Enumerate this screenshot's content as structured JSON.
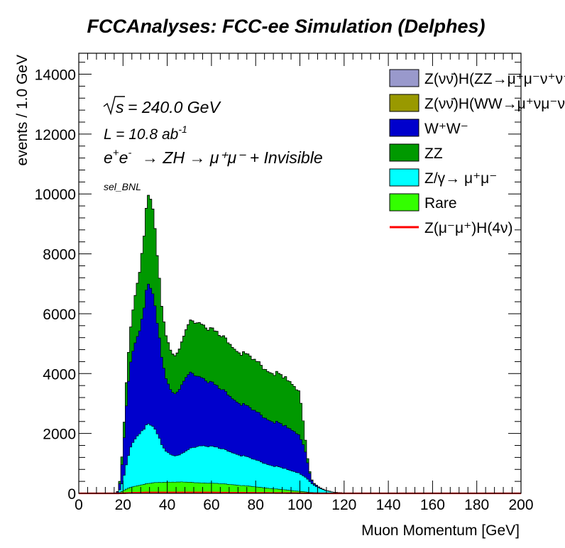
{
  "chart_data": {
    "type": "area",
    "title": "FCCAnalyses: FCC-ee Simulation (Delphes)",
    "xlabel": "Muon Momentum [GeV]",
    "ylabel": "events / 1.0 GeV",
    "xlim": [
      0,
      200
    ],
    "ylim": [
      0,
      14700
    ],
    "x_ticks": [
      "0",
      "20",
      "40",
      "60",
      "80",
      "100",
      "120",
      "140",
      "160",
      "180",
      "200"
    ],
    "y_ticks": [
      "0",
      "2000",
      "4000",
      "6000",
      "8000",
      "10000",
      "12000",
      "14000"
    ],
    "annotations": {
      "sqrt_s": "= 240.0 GeV",
      "lumi_prefix": "L = 10.8 ab",
      "lumi_exp": "-1",
      "process": "→ ZH → μ⁺μ⁻ + Invisible",
      "selection": "sel_BNL"
    },
    "legend_position": "top-right",
    "legend": [
      {
        "key": "zh_zz",
        "text": "Z(νν̄)H(ZZ→μ⁺μ⁻ν⁺ν⁻)",
        "color": "#9999cc",
        "style": "fill"
      },
      {
        "key": "zh_ww",
        "text": "Z(νν̄)H(WW→μ⁺νμ⁻ν)",
        "color": "#999900",
        "style": "fill"
      },
      {
        "key": "ww",
        "text": "W⁺W⁻",
        "color": "#0000cc",
        "style": "fill"
      },
      {
        "key": "zz",
        "text": "ZZ",
        "color": "#009900",
        "style": "fill"
      },
      {
        "key": "zgamma",
        "text": "Z/γ→ μ⁺μ⁻",
        "color": "#00ffff",
        "style": "fill"
      },
      {
        "key": "rare",
        "text": "Rare",
        "color": "#33ff00",
        "style": "fill"
      },
      {
        "key": "signal",
        "text": "Z(μ⁻μ⁺)H(4ν)",
        "color": "#ff0000",
        "style": "line"
      }
    ],
    "x_knots": [
      0,
      17,
      18,
      19,
      20,
      21,
      22,
      23,
      24,
      25,
      26,
      28,
      30,
      31,
      32,
      33,
      34,
      36,
      38,
      40,
      42,
      44,
      46,
      48,
      50,
      52,
      54,
      56,
      58,
      60,
      62,
      64,
      66,
      70,
      74,
      78,
      82,
      86,
      90,
      94,
      96,
      98,
      100,
      102,
      103,
      104,
      105,
      106,
      108,
      110,
      112,
      114,
      116,
      118,
      120,
      121,
      122,
      200
    ],
    "series": [
      {
        "key": "rare",
        "name": "Rare",
        "color": "#33ff00",
        "values": [
          0,
          0,
          10,
          40,
          80,
          120,
          160,
          190,
          210,
          230,
          250,
          280,
          310,
          320,
          330,
          340,
          350,
          360,
          370,
          375,
          380,
          380,
          375,
          370,
          365,
          360,
          355,
          350,
          345,
          340,
          330,
          320,
          310,
          290,
          260,
          230,
          200,
          170,
          140,
          110,
          95,
          80,
          70,
          55,
          45,
          35,
          30,
          25,
          20,
          15,
          10,
          5,
          3,
          2,
          1,
          0,
          0,
          0
        ]
      },
      {
        "key": "zgamma",
        "name": "Z/γ→ μ⁺μ⁻",
        "color": "#00ffff",
        "values": [
          0,
          0,
          30,
          150,
          350,
          650,
          950,
          1250,
          1450,
          1550,
          1650,
          1800,
          1900,
          1950,
          1950,
          1900,
          1800,
          1550,
          1200,
          1000,
          920,
          880,
          900,
          1000,
          1100,
          1180,
          1230,
          1260,
          1250,
          1230,
          1200,
          1170,
          1130,
          1070,
          1000,
          920,
          860,
          800,
          740,
          690,
          660,
          640,
          600,
          520,
          470,
          400,
          320,
          260,
          180,
          120,
          80,
          50,
          30,
          20,
          10,
          5,
          0,
          0
        ]
      },
      {
        "key": "ww",
        "name": "W⁺W⁻",
        "color": "#0000cc",
        "values": [
          0,
          0,
          60,
          350,
          900,
          1600,
          2300,
          2700,
          3000,
          3200,
          3300,
          3600,
          4300,
          4550,
          4600,
          4500,
          4200,
          3500,
          2800,
          2350,
          2150,
          2100,
          2200,
          2400,
          2500,
          2450,
          2350,
          2300,
          2200,
          2150,
          2050,
          1980,
          1920,
          1820,
          1720,
          1640,
          1580,
          1520,
          1460,
          1400,
          1380,
          1340,
          1260,
          1000,
          700,
          400,
          150,
          60,
          30,
          15,
          8,
          4,
          2,
          1,
          0,
          0,
          0,
          0
        ]
      },
      {
        "key": "zz",
        "name": "ZZ",
        "color": "#009900",
        "values": [
          0,
          0,
          20,
          130,
          380,
          650,
          880,
          1060,
          1280,
          1500,
          1700,
          2100,
          2550,
          2800,
          3000,
          2900,
          2650,
          2100,
          1600,
          1400,
          1300,
          1280,
          1350,
          1520,
          1680,
          1760,
          1800,
          1800,
          1790,
          1780,
          1770,
          1760,
          1750,
          1730,
          1700,
          1680,
          1660,
          1640,
          1620,
          1580,
          1560,
          1500,
          1450,
          600,
          200,
          80,
          30,
          15,
          5,
          2,
          0,
          0,
          0,
          0,
          0,
          0,
          0,
          0
        ]
      },
      {
        "key": "zh_ww",
        "name": "Z(νν̄)H(WW→μ⁺νμ⁻ν)",
        "color": "#999900",
        "values": [
          0,
          0,
          0,
          0,
          1,
          2,
          3,
          4,
          5,
          6,
          6,
          7,
          8,
          8,
          8,
          8,
          8,
          8,
          8,
          8,
          8,
          8,
          8,
          8,
          8,
          8,
          8,
          8,
          8,
          8,
          8,
          7,
          7,
          7,
          6,
          6,
          5,
          5,
          4,
          3,
          3,
          2,
          2,
          1,
          1,
          1,
          1,
          0,
          0,
          0,
          0,
          0,
          0,
          0,
          0,
          0,
          0,
          0
        ]
      },
      {
        "key": "zh_zz",
        "name": "Z(νν̄)H(ZZ→μ⁺μ⁻ν⁺ν⁻)",
        "color": "#9999cc",
        "values": [
          0,
          0,
          0,
          0,
          0,
          1,
          1,
          1,
          1,
          1,
          1,
          1,
          1,
          1,
          1,
          1,
          1,
          1,
          1,
          1,
          1,
          1,
          1,
          1,
          1,
          1,
          1,
          1,
          1,
          1,
          1,
          1,
          1,
          1,
          1,
          1,
          1,
          1,
          1,
          1,
          1,
          0,
          0,
          0,
          0,
          0,
          0,
          0,
          0,
          0,
          0,
          0,
          0,
          0,
          0,
          0,
          0,
          0
        ]
      },
      {
        "key": "signal",
        "name": "Z(μ⁻μ⁺)H(4ν)",
        "color": "#ff0000",
        "style": "line",
        "values": [
          0,
          0,
          1,
          3,
          5,
          8,
          12,
          15,
          18,
          20,
          22,
          25,
          28,
          30,
          30,
          30,
          30,
          30,
          30,
          30,
          30,
          30,
          30,
          30,
          30,
          30,
          30,
          30,
          30,
          30,
          28,
          26,
          24,
          22,
          20,
          18,
          16,
          14,
          12,
          10,
          9,
          8,
          6,
          4,
          3,
          2,
          1,
          1,
          0,
          0,
          0,
          0,
          0,
          0,
          0,
          0,
          0,
          0
        ]
      }
    ]
  }
}
